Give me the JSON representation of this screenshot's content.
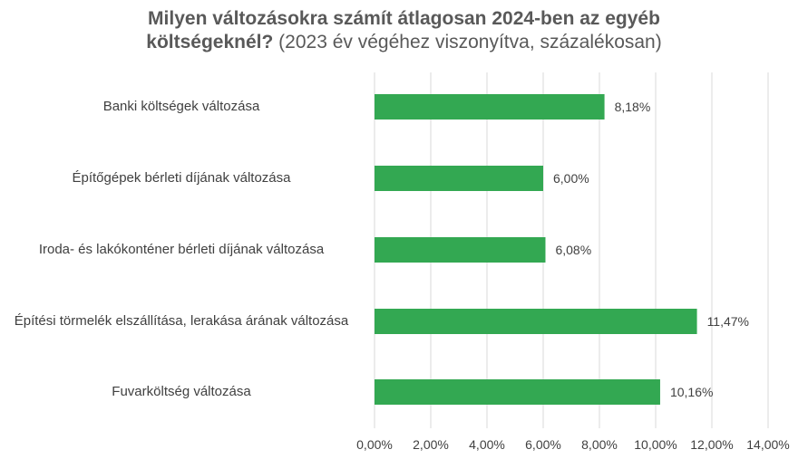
{
  "chart_data": {
    "type": "bar",
    "orientation": "horizontal",
    "title_bold": "Milyen változásokra számít átlagosan 2024-ben az egyéb",
    "title_bold2": "költségeknél?",
    "title_rest": " (2023 év végéhez viszonyítva, százalékosan)",
    "categories": [
      "Banki költségek változása",
      "Építőgépek bérleti díjának változása",
      "Iroda- és lakókonténer bérleti díjának változása",
      "Építési törmelék elszállítása, lerakása árának változása",
      "Fuvarköltség változása"
    ],
    "values": [
      8.18,
      6.0,
      6.08,
      11.47,
      10.16
    ],
    "value_labels": [
      "8,18%",
      "6,00%",
      "6,08%",
      "11,47%",
      "10,16%"
    ],
    "xlim": [
      0,
      14
    ],
    "xticks": [
      "0,00%",
      "2,00%",
      "4,00%",
      "6,00%",
      "8,00%",
      "10,00%",
      "12,00%",
      "14,00%"
    ],
    "grid": true,
    "bar_color": "#33a852"
  }
}
